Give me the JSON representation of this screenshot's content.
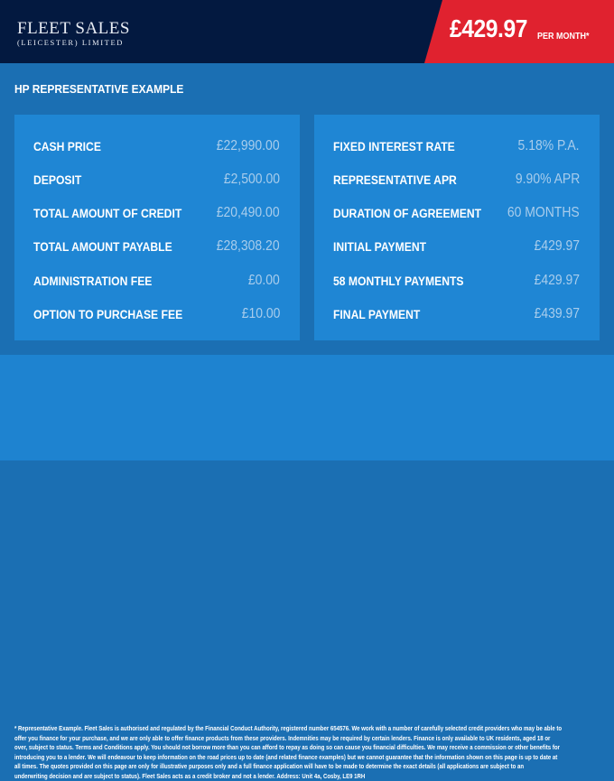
{
  "header": {
    "logo_line1": "FLEET SALES",
    "logo_line2": "(LEICESTER) LIMITED",
    "price": "£429.97",
    "price_suffix": "PER MONTH*"
  },
  "colors": {
    "header": "#031940",
    "accent_red": "#e0222f",
    "body": "#1b6fb3",
    "panel": "#1f86d4"
  },
  "title": "HP REPRESENTATIVE EXAMPLE",
  "left_panel": [
    {
      "label": "CASH PRICE",
      "value": "£22,990.00"
    },
    {
      "label": "DEPOSIT",
      "value": "£2,500.00"
    },
    {
      "label": "TOTAL AMOUNT OF CREDIT",
      "value": "£20,490.00"
    },
    {
      "label": "TOTAL AMOUNT PAYABLE",
      "value": "£28,308.20"
    },
    {
      "label": "ADMINISTRATION FEE",
      "value": "£0.00"
    },
    {
      "label": "OPTION TO PURCHASE FEE",
      "value": "£10.00"
    }
  ],
  "right_panel": [
    {
      "label": "FIXED INTEREST RATE",
      "value": "5.18% P.A."
    },
    {
      "label": "REPRESENTATIVE APR",
      "value": "9.90% APR"
    },
    {
      "label": "DURATION OF AGREEMENT",
      "value": "60 MONTHS"
    },
    {
      "label": "INITIAL PAYMENT",
      "value": "£429.97"
    },
    {
      "label": "58 MONTHLY PAYMENTS",
      "value": "£429.97"
    },
    {
      "label": "FINAL PAYMENT",
      "value": "£439.97"
    }
  ],
  "disclaimer": [
    "* Representative Example. Fleet Sales is authorised and regulated by the Financial Conduct Authority, registered number 654576. We work with a number of carefully selected credit providers who may be able to",
    "offer you finance for your purchase, and we are only able to offer finance products from these providers. Indemnities may be required by certain lenders. Finance is only available to UK residents, aged 18 or",
    "over, subject to status. Terms and Conditions apply. You should not borrow more than you can afford to repay as doing so can cause you financial difficulties. We may receive a commission or other benefits for",
    "introducing you to a lender. We will endeavour to keep information on the road prices up to date (and related finance examples) but we cannot guarantee that the information shown on this page is up to date at",
    "all times. The quotes provided on this page are only for illustrative purposes only and a full finance application will have to be made to determine the exact details (all applications are subject to an",
    "underwriting decision and are subject to status). Fleet Sales acts as a credit broker and not a lender. Address: Unit 4a, Cosby, LE9 1RH"
  ]
}
